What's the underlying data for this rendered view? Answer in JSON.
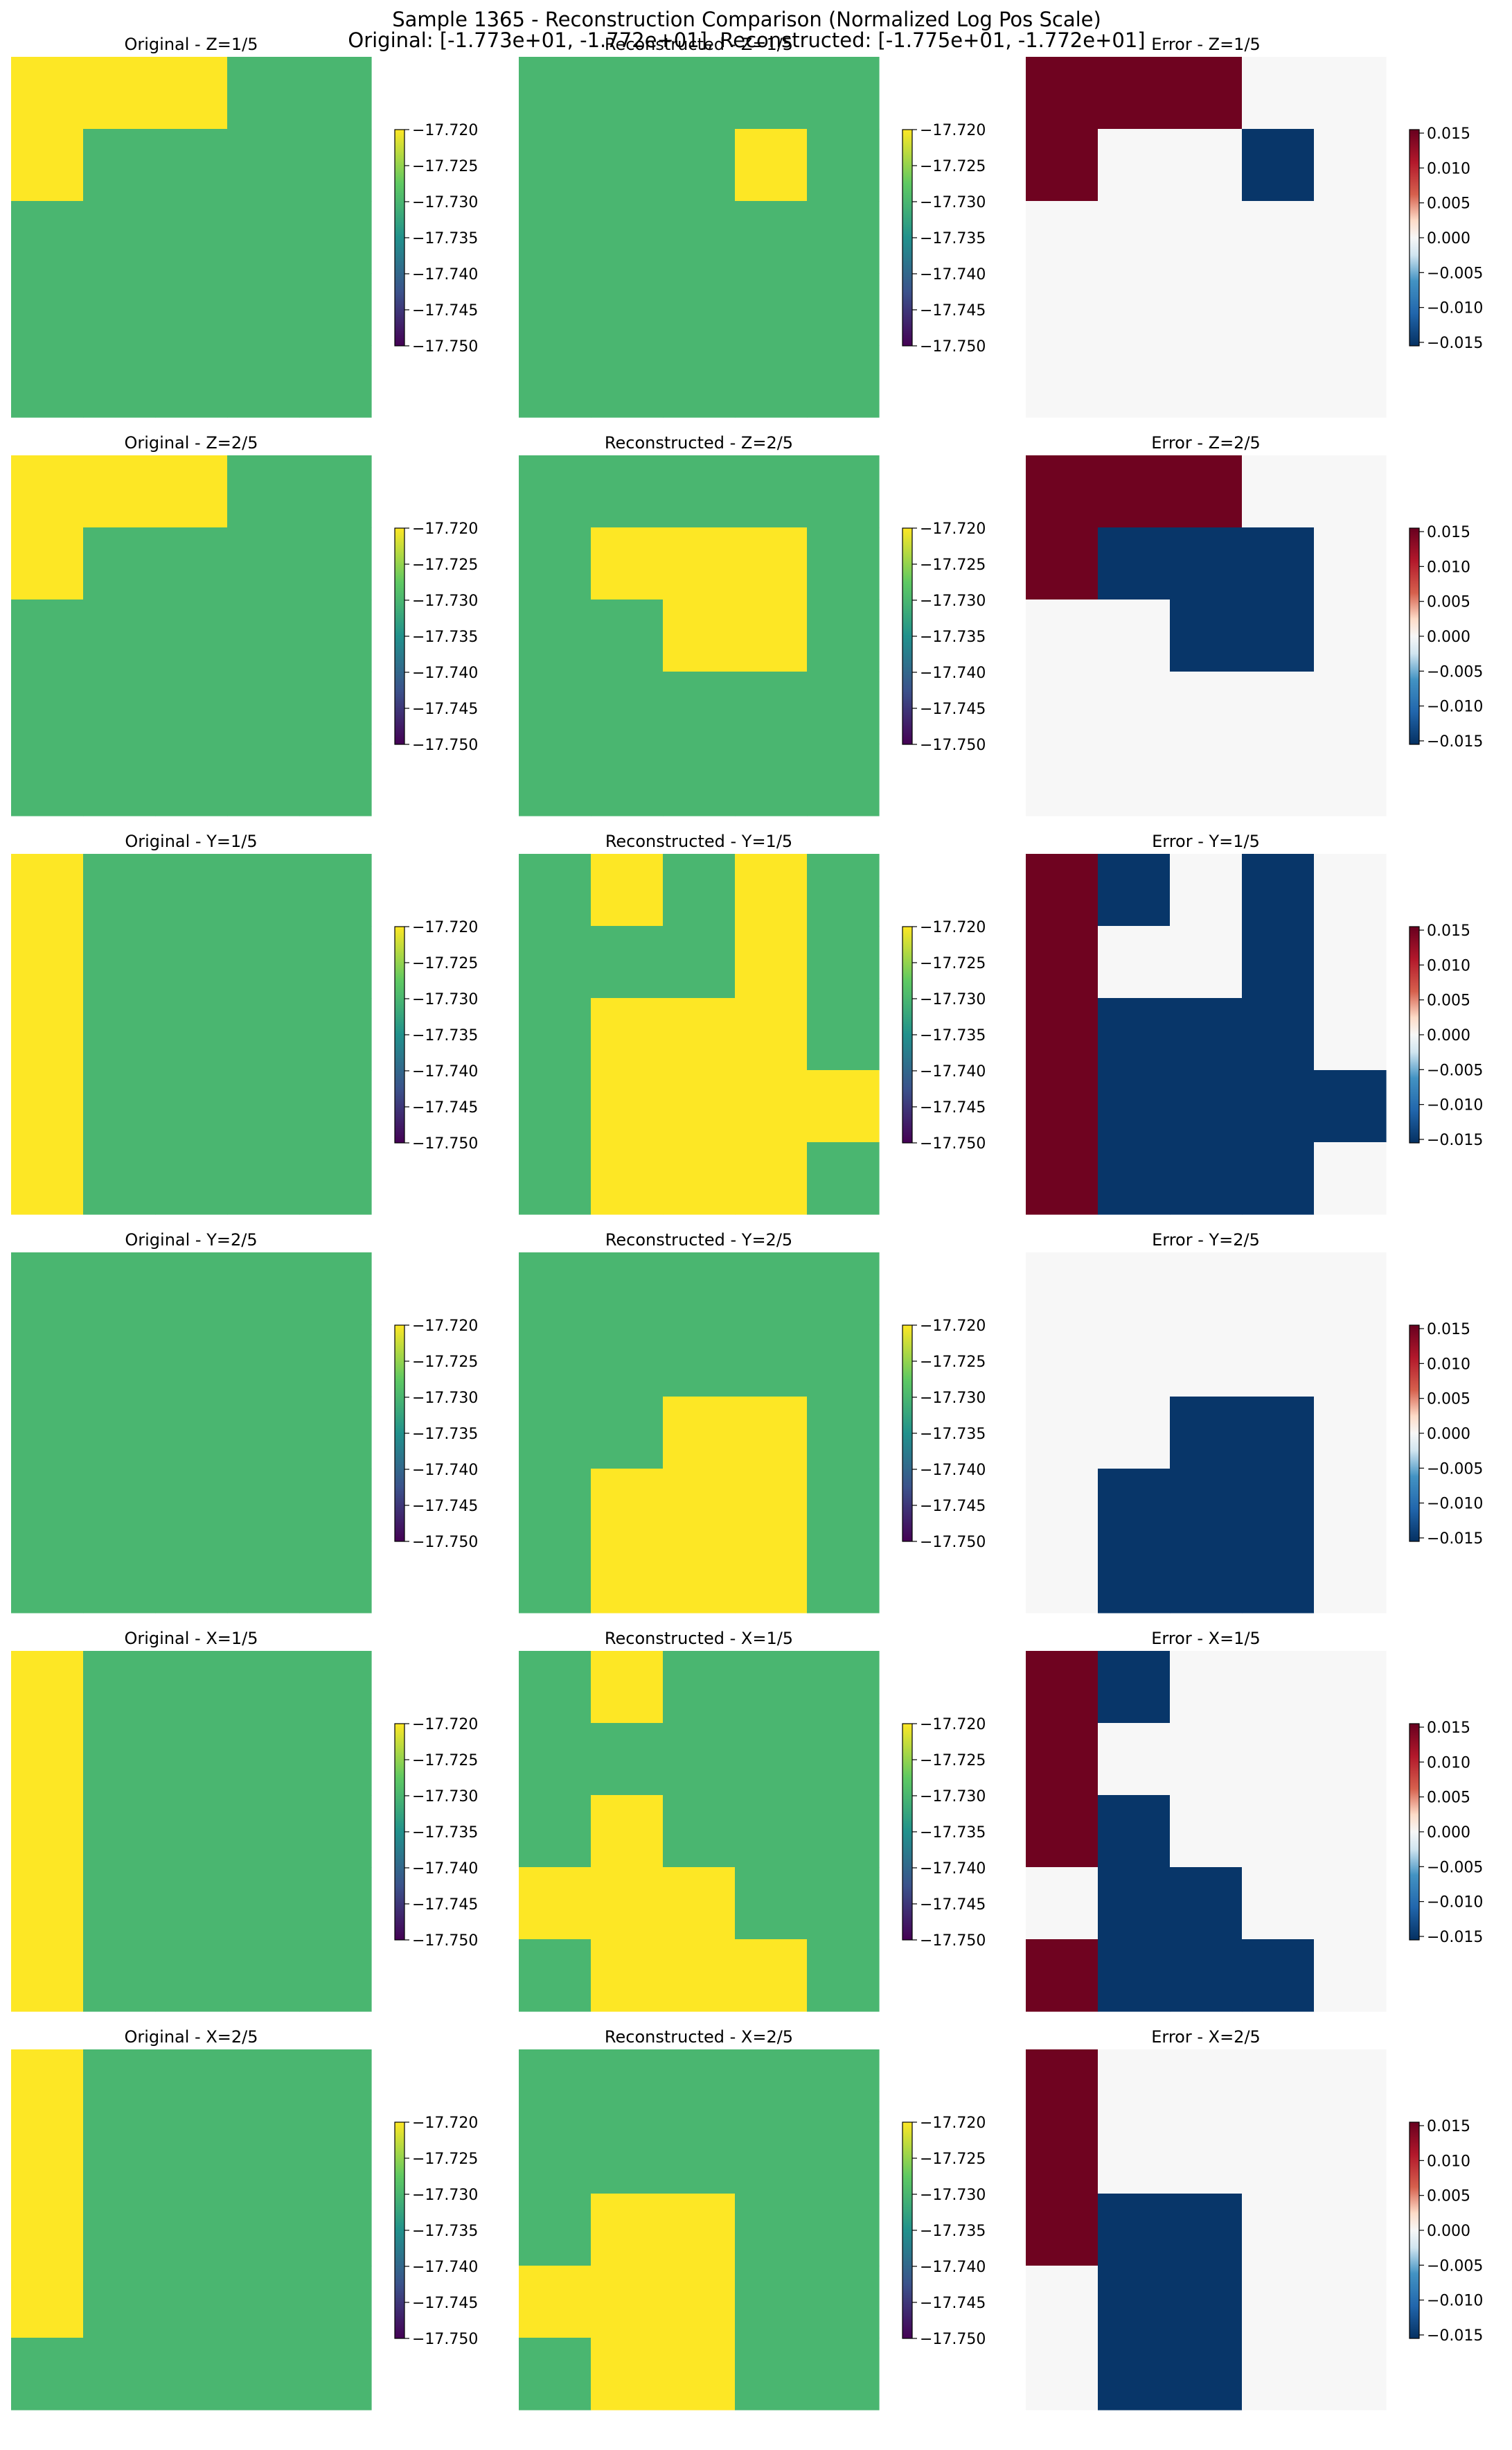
{
  "figure": {
    "title_line1": "Sample 1365 - Reconstruction Comparison (Normalized Log Pos Scale)",
    "title_line2": "Original: [-1.773e+01, -1.772e+01], Reconstructed: [-1.775e+01, -1.772e+01]"
  },
  "colorbars": {
    "value": {
      "colormap": "viridis",
      "range": [
        -17.75,
        -17.72
      ],
      "ticks": [
        "−17.720",
        "−17.725",
        "−17.730",
        "−17.735",
        "−17.740",
        "−17.745",
        "−17.750"
      ]
    },
    "error": {
      "colormap": "RdBu_r",
      "range": [
        -0.0155,
        0.0155
      ],
      "ticks": [
        "0.015",
        "0.010",
        "0.005",
        "0.000",
        "−0.005",
        "−0.010",
        "−0.015"
      ]
    }
  },
  "chart_data": [
    {
      "type": "heatmap",
      "title": "Original - Z=1/5",
      "colormap": "viridis",
      "values": [
        [
          -17.72,
          -17.72,
          -17.72,
          -17.73,
          -17.73
        ],
        [
          -17.72,
          -17.73,
          -17.73,
          -17.73,
          -17.73
        ],
        [
          -17.73,
          -17.73,
          -17.73,
          -17.73,
          -17.73
        ],
        [
          -17.73,
          -17.73,
          -17.73,
          -17.73,
          -17.73
        ],
        [
          -17.73,
          -17.73,
          -17.73,
          -17.73,
          -17.73
        ]
      ]
    },
    {
      "type": "heatmap",
      "title": "Reconstructed - Z=1/5",
      "colormap": "viridis",
      "values": [
        [
          -17.73,
          -17.73,
          -17.73,
          -17.73,
          -17.73
        ],
        [
          -17.73,
          -17.73,
          -17.73,
          -17.72,
          -17.73
        ],
        [
          -17.73,
          -17.73,
          -17.73,
          -17.73,
          -17.73
        ],
        [
          -17.73,
          -17.73,
          -17.73,
          -17.73,
          -17.73
        ],
        [
          -17.73,
          -17.73,
          -17.73,
          -17.73,
          -17.73
        ]
      ]
    },
    {
      "type": "heatmap",
      "title": "Error - Z=1/5",
      "colormap": "RdBu_r",
      "values": [
        [
          0.015,
          0.015,
          0.015,
          0,
          0
        ],
        [
          0.015,
          0,
          0,
          -0.015,
          0
        ],
        [
          0,
          0,
          0,
          0,
          0
        ],
        [
          0,
          0,
          0,
          0,
          0
        ],
        [
          0,
          0,
          0,
          0,
          0
        ]
      ]
    },
    {
      "type": "heatmap",
      "title": "Original - Z=2/5",
      "colormap": "viridis",
      "values": [
        [
          -17.72,
          -17.72,
          -17.72,
          -17.73,
          -17.73
        ],
        [
          -17.72,
          -17.73,
          -17.73,
          -17.73,
          -17.73
        ],
        [
          -17.73,
          -17.73,
          -17.73,
          -17.73,
          -17.73
        ],
        [
          -17.73,
          -17.73,
          -17.73,
          -17.73,
          -17.73
        ],
        [
          -17.73,
          -17.73,
          -17.73,
          -17.73,
          -17.73
        ]
      ]
    },
    {
      "type": "heatmap",
      "title": "Reconstructed - Z=2/5",
      "colormap": "viridis",
      "values": [
        [
          -17.73,
          -17.73,
          -17.73,
          -17.73,
          -17.73
        ],
        [
          -17.73,
          -17.72,
          -17.72,
          -17.72,
          -17.73
        ],
        [
          -17.73,
          -17.73,
          -17.72,
          -17.72,
          -17.73
        ],
        [
          -17.73,
          -17.73,
          -17.73,
          -17.73,
          -17.73
        ],
        [
          -17.73,
          -17.73,
          -17.73,
          -17.73,
          -17.73
        ]
      ]
    },
    {
      "type": "heatmap",
      "title": "Error - Z=2/5",
      "colormap": "RdBu_r",
      "values": [
        [
          0.015,
          0.015,
          0.015,
          0,
          0
        ],
        [
          0.015,
          -0.015,
          -0.015,
          -0.015,
          0
        ],
        [
          0,
          0,
          -0.015,
          -0.015,
          0
        ],
        [
          0,
          0,
          0,
          0,
          0
        ],
        [
          0,
          0,
          0,
          0,
          0
        ]
      ]
    },
    {
      "type": "heatmap",
      "title": "Original - Y=1/5",
      "colormap": "viridis",
      "values": [
        [
          -17.72,
          -17.73,
          -17.73,
          -17.73,
          -17.73
        ],
        [
          -17.72,
          -17.73,
          -17.73,
          -17.73,
          -17.73
        ],
        [
          -17.72,
          -17.73,
          -17.73,
          -17.73,
          -17.73
        ],
        [
          -17.72,
          -17.73,
          -17.73,
          -17.73,
          -17.73
        ],
        [
          -17.72,
          -17.73,
          -17.73,
          -17.73,
          -17.73
        ]
      ]
    },
    {
      "type": "heatmap",
      "title": "Reconstructed - Y=1/5",
      "colormap": "viridis",
      "values": [
        [
          -17.73,
          -17.72,
          -17.73,
          -17.72,
          -17.73
        ],
        [
          -17.73,
          -17.73,
          -17.73,
          -17.72,
          -17.73
        ],
        [
          -17.73,
          -17.72,
          -17.72,
          -17.72,
          -17.73
        ],
        [
          -17.73,
          -17.72,
          -17.72,
          -17.72,
          -17.72
        ],
        [
          -17.73,
          -17.72,
          -17.72,
          -17.72,
          -17.73
        ]
      ]
    },
    {
      "type": "heatmap",
      "title": "Error - Y=1/5",
      "colormap": "RdBu_r",
      "values": [
        [
          0.015,
          -0.015,
          0,
          -0.015,
          0
        ],
        [
          0.015,
          0,
          0,
          -0.015,
          0
        ],
        [
          0.015,
          -0.015,
          -0.015,
          -0.015,
          0
        ],
        [
          0.015,
          -0.015,
          -0.015,
          -0.015,
          -0.015
        ],
        [
          0.015,
          -0.015,
          -0.015,
          -0.015,
          0
        ]
      ]
    },
    {
      "type": "heatmap",
      "title": "Original - Y=2/5",
      "colormap": "viridis",
      "values": [
        [
          -17.73,
          -17.73,
          -17.73,
          -17.73,
          -17.73
        ],
        [
          -17.73,
          -17.73,
          -17.73,
          -17.73,
          -17.73
        ],
        [
          -17.73,
          -17.73,
          -17.73,
          -17.73,
          -17.73
        ],
        [
          -17.73,
          -17.73,
          -17.73,
          -17.73,
          -17.73
        ],
        [
          -17.73,
          -17.73,
          -17.73,
          -17.73,
          -17.73
        ]
      ]
    },
    {
      "type": "heatmap",
      "title": "Reconstructed - Y=2/5",
      "colormap": "viridis",
      "values": [
        [
          -17.73,
          -17.73,
          -17.73,
          -17.73,
          -17.73
        ],
        [
          -17.73,
          -17.73,
          -17.73,
          -17.73,
          -17.73
        ],
        [
          -17.73,
          -17.73,
          -17.72,
          -17.72,
          -17.73
        ],
        [
          -17.73,
          -17.72,
          -17.72,
          -17.72,
          -17.73
        ],
        [
          -17.73,
          -17.72,
          -17.72,
          -17.72,
          -17.73
        ]
      ]
    },
    {
      "type": "heatmap",
      "title": "Error - Y=2/5",
      "colormap": "RdBu_r",
      "values": [
        [
          0,
          0,
          0,
          0,
          0
        ],
        [
          0,
          0,
          0,
          0,
          0
        ],
        [
          0,
          0,
          -0.015,
          -0.015,
          0
        ],
        [
          0,
          -0.015,
          -0.015,
          -0.015,
          0
        ],
        [
          0,
          -0.015,
          -0.015,
          -0.015,
          0
        ]
      ]
    },
    {
      "type": "heatmap",
      "title": "Original - X=1/5",
      "colormap": "viridis",
      "values": [
        [
          -17.72,
          -17.73,
          -17.73,
          -17.73,
          -17.73
        ],
        [
          -17.72,
          -17.73,
          -17.73,
          -17.73,
          -17.73
        ],
        [
          -17.72,
          -17.73,
          -17.73,
          -17.73,
          -17.73
        ],
        [
          -17.72,
          -17.73,
          -17.73,
          -17.73,
          -17.73
        ],
        [
          -17.72,
          -17.73,
          -17.73,
          -17.73,
          -17.73
        ]
      ]
    },
    {
      "type": "heatmap",
      "title": "Reconstructed - X=1/5",
      "colormap": "viridis",
      "values": [
        [
          -17.73,
          -17.72,
          -17.73,
          -17.73,
          -17.73
        ],
        [
          -17.73,
          -17.73,
          -17.73,
          -17.73,
          -17.73
        ],
        [
          -17.73,
          -17.72,
          -17.73,
          -17.73,
          -17.73
        ],
        [
          -17.72,
          -17.72,
          -17.72,
          -17.73,
          -17.73
        ],
        [
          -17.73,
          -17.72,
          -17.72,
          -17.72,
          -17.73
        ]
      ]
    },
    {
      "type": "heatmap",
      "title": "Error - X=1/5",
      "colormap": "RdBu_r",
      "values": [
        [
          0.015,
          -0.015,
          0,
          0,
          0
        ],
        [
          0.015,
          0,
          0,
          0,
          0
        ],
        [
          0.015,
          -0.015,
          0,
          0,
          0
        ],
        [
          0,
          -0.015,
          -0.015,
          0,
          0
        ],
        [
          0.015,
          -0.015,
          -0.015,
          -0.015,
          0
        ]
      ]
    },
    {
      "type": "heatmap",
      "title": "Original - X=2/5",
      "colormap": "viridis",
      "values": [
        [
          -17.72,
          -17.73,
          -17.73,
          -17.73,
          -17.73
        ],
        [
          -17.72,
          -17.73,
          -17.73,
          -17.73,
          -17.73
        ],
        [
          -17.72,
          -17.73,
          -17.73,
          -17.73,
          -17.73
        ],
        [
          -17.72,
          -17.73,
          -17.73,
          -17.73,
          -17.73
        ],
        [
          -17.73,
          -17.73,
          -17.73,
          -17.73,
          -17.73
        ]
      ]
    },
    {
      "type": "heatmap",
      "title": "Reconstructed - X=2/5",
      "colormap": "viridis",
      "values": [
        [
          -17.73,
          -17.73,
          -17.73,
          -17.73,
          -17.73
        ],
        [
          -17.73,
          -17.73,
          -17.73,
          -17.73,
          -17.73
        ],
        [
          -17.73,
          -17.72,
          -17.72,
          -17.73,
          -17.73
        ],
        [
          -17.72,
          -17.72,
          -17.72,
          -17.73,
          -17.73
        ],
        [
          -17.73,
          -17.72,
          -17.72,
          -17.73,
          -17.73
        ]
      ]
    },
    {
      "type": "heatmap",
      "title": "Error - X=2/5",
      "colormap": "RdBu_r",
      "values": [
        [
          0.015,
          0,
          0,
          0,
          0
        ],
        [
          0.015,
          0,
          0,
          0,
          0
        ],
        [
          0.015,
          -0.015,
          -0.015,
          0,
          0
        ],
        [
          0,
          -0.015,
          -0.015,
          0,
          0
        ],
        [
          0,
          -0.015,
          -0.015,
          0,
          0
        ]
      ]
    }
  ]
}
